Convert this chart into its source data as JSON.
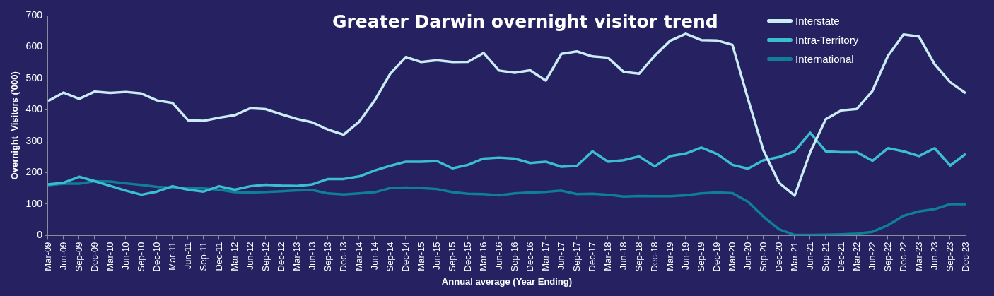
{
  "chart_data": {
    "type": "line",
    "title": "Greater Darwin overnight visitor trend",
    "xlabel": "Annual average (Year Ending)",
    "ylabel": "Overnight  Visitors ('000)",
    "categories": [
      "Mar-09",
      "Jun-09",
      "Sep-09",
      "Dec-09",
      "Mar-10",
      "Jun-10",
      "Sep-10",
      "Dec-10",
      "Mar-11",
      "Jun-11",
      "Sep-11",
      "Dec-11",
      "Mar-12",
      "Jun-12",
      "Sep-12",
      "Dec-12",
      "Mar-13",
      "Jun-13",
      "Sep-13",
      "Dec-13",
      "Mar-14",
      "Jun-14",
      "Sep-14",
      "Dec-14",
      "Mar-15",
      "Jun-15",
      "Sep-15",
      "Dec-15",
      "Mar-16",
      "Jun-16",
      "Sep-16",
      "Dec-16",
      "Mar-17",
      "Jun-17",
      "Sep-17",
      "Dec-17",
      "Mar-18",
      "Jun-18",
      "Sep-18",
      "Dec-18",
      "Mar-19",
      "Jun-19",
      "Sep-19",
      "Dec-19",
      "Mar-20",
      "Jun-20",
      "Sep-20",
      "Dec-20",
      "Mar-21",
      "Jun-21",
      "Sep-21",
      "Dec-21",
      "Mar-22",
      "Jun-22",
      "Sep-22",
      "Dec-22",
      "Mar-23",
      "Jun-23",
      "Sep-23",
      "Dec-23"
    ],
    "series": [
      {
        "name": "Interstate",
        "color": "#c9ecf5",
        "values": [
          428,
          455,
          435,
          458,
          454,
          457,
          452,
          430,
          422,
          367,
          365,
          375,
          383,
          405,
          402,
          386,
          371,
          360,
          337,
          321,
          362,
          430,
          515,
          568,
          552,
          558,
          552,
          553,
          581,
          525,
          518,
          526,
          493,
          578,
          586,
          570,
          566,
          521,
          515,
          572,
          620,
          642,
          622,
          621,
          607,
          435,
          270,
          168,
          127,
          265,
          370,
          398,
          403,
          460,
          572,
          640,
          633,
          545,
          488,
          453
        ]
      },
      {
        "name": "Intra-Territory",
        "color": "#3bbfd0",
        "values": [
          163,
          168,
          187,
          173,
          158,
          143,
          130,
          140,
          157,
          146,
          140,
          157,
          146,
          157,
          162,
          159,
          158,
          163,
          180,
          180,
          188,
          207,
          222,
          235,
          235,
          237,
          214,
          225,
          245,
          248,
          245,
          231,
          235,
          219,
          222,
          268,
          235,
          240,
          252,
          220,
          253,
          261,
          280,
          260,
          225,
          213,
          240,
          250,
          268,
          327,
          268,
          265,
          265,
          238,
          278,
          268,
          253,
          278,
          223,
          260
        ]
      },
      {
        "name": "International",
        "color": "#0e7f97",
        "values": [
          160,
          165,
          165,
          173,
          172,
          166,
          161,
          155,
          152,
          152,
          150,
          146,
          138,
          137,
          139,
          141,
          144,
          145,
          134,
          131,
          134,
          138,
          151,
          153,
          151,
          148,
          138,
          133,
          132,
          128,
          134,
          137,
          139,
          143,
          132,
          133,
          130,
          124,
          126,
          125,
          125,
          128,
          134,
          137,
          135,
          108,
          60,
          20,
          2,
          2,
          3,
          4,
          6,
          12,
          33,
          63,
          77,
          84,
          100,
          100
        ]
      }
    ],
    "ylim": [
      0,
      700
    ],
    "yticks": [
      0,
      100,
      200,
      300,
      400,
      500,
      600,
      700
    ],
    "grid": false,
    "legend": "top right",
    "marker": "none",
    "line_style": "solid"
  }
}
